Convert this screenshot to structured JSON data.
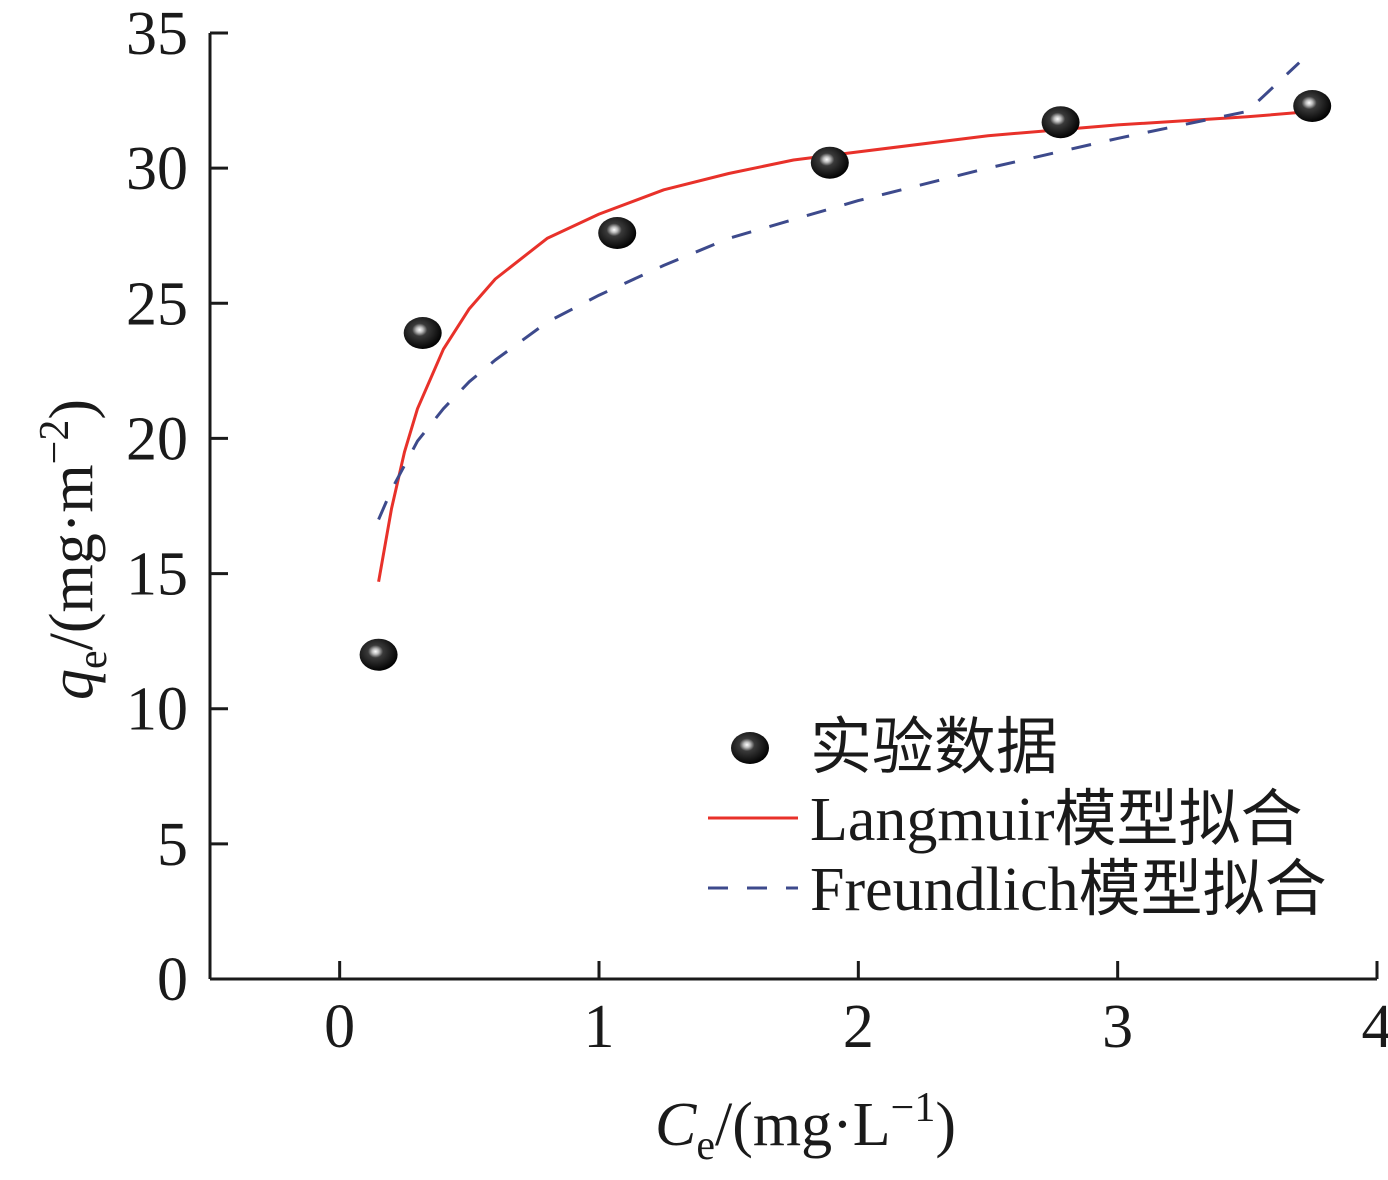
{
  "chart_data": {
    "type": "scatter",
    "title": "",
    "xlabel": {
      "var": "C",
      "sub": "e",
      "unit_open": "/(mg·L",
      "unit_exp": "−1",
      "unit_close": ")"
    },
    "ylabel": {
      "var": "q",
      "sub": "e",
      "unit_open": "/(mg·m",
      "unit_exp": "−2",
      "unit_close": ")"
    },
    "xlim": [
      -0.5,
      4
    ],
    "ylim": [
      0,
      35
    ],
    "xticks": [
      0,
      1,
      2,
      3,
      4
    ],
    "yticks": [
      0,
      5,
      10,
      15,
      20,
      25,
      30,
      35
    ],
    "xtick_labels": [
      "0",
      "1",
      "2",
      "3",
      "4"
    ],
    "ytick_labels": [
      "0",
      "5",
      "10",
      "15",
      "20",
      "25",
      "30",
      "35"
    ],
    "grid": false,
    "legend_position": "bottom-right",
    "legend": [
      "实验数据",
      "Langmuir模型拟合",
      "Freundlich模型拟合"
    ],
    "series": [
      {
        "name": "实验数据",
        "kind": "scatter",
        "x": [
          0.15,
          0.32,
          1.07,
          1.89,
          2.78,
          3.75
        ],
        "y": [
          12.0,
          23.9,
          27.6,
          30.2,
          31.7,
          32.3
        ]
      },
      {
        "name": "Langmuir模型拟合",
        "kind": "line",
        "color": "#e8312a",
        "x": [
          0.15,
          0.2,
          0.25,
          0.3,
          0.4,
          0.5,
          0.6,
          0.8,
          1.0,
          1.25,
          1.5,
          1.75,
          2.0,
          2.5,
          3.0,
          3.5,
          3.75
        ],
        "y": [
          14.7,
          17.4,
          19.5,
          21.1,
          23.3,
          24.8,
          25.9,
          27.4,
          28.3,
          29.2,
          29.8,
          30.3,
          30.6,
          31.2,
          31.6,
          31.9,
          32.1
        ]
      },
      {
        "name": "Freundlich模型拟合",
        "kind": "line",
        "dashed": true,
        "color": "#3d4a8c",
        "x": [
          0.15,
          0.2,
          0.3,
          0.4,
          0.5,
          0.6,
          0.8,
          1.0,
          1.25,
          1.5,
          1.75,
          2.0,
          2.5,
          3.0,
          3.5,
          3.7
        ],
        "y": [
          17.0,
          18.1,
          19.9,
          21.1,
          22.1,
          22.9,
          24.3,
          25.3,
          26.4,
          27.4,
          28.1,
          28.8,
          30.0,
          31.1,
          32.1,
          33.9
        ]
      }
    ]
  }
}
